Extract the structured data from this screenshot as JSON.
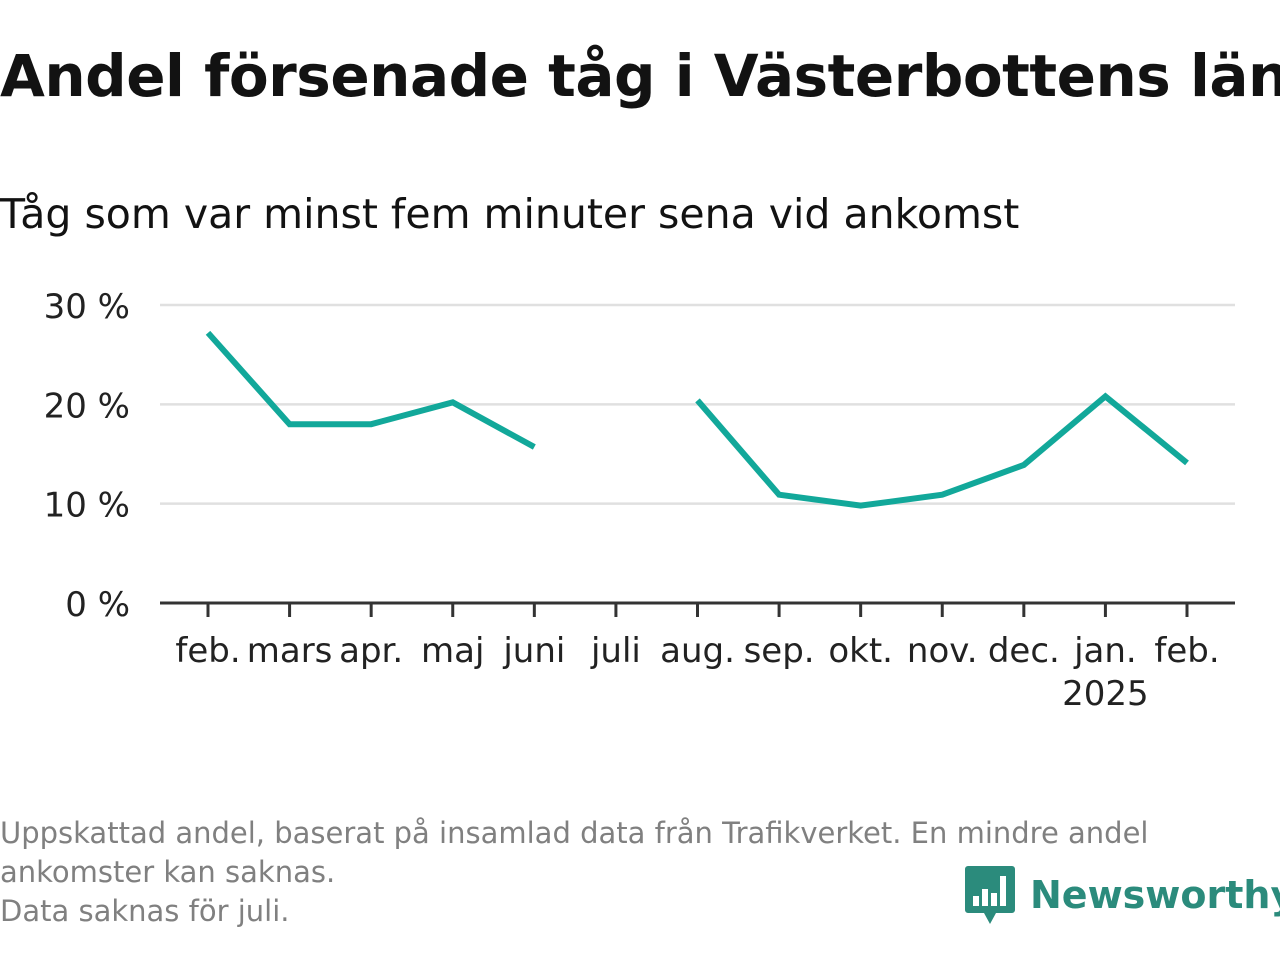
{
  "title": "Andel försenade tåg i Västerbottens län",
  "subtitle": "Tåg som var minst fem minuter sena vid ankomst",
  "footnote": {
    "line1": "Uppskattad andel, baserat på insamlad data från Trafikverket. En mindre andel",
    "line2": "ankomster kan saknas.",
    "line3": "Data saknas för juli."
  },
  "brand": {
    "name": "Newsworthy",
    "icon": "newsworthy-logo-icon",
    "color": "#2b8b7c"
  },
  "colors": {
    "line": "#12a89a",
    "grid": "#e0e0e0",
    "axis": "#333333"
  },
  "chart_data": {
    "type": "line",
    "title": "Andel försenade tåg i Västerbottens län",
    "subtitle": "Tåg som var minst fem minuter sena vid ankomst",
    "categories": [
      "feb.",
      "mars",
      "apr.",
      "maj",
      "juni",
      "juli",
      "aug.",
      "sep.",
      "okt.",
      "nov.",
      "dec.",
      "jan.",
      "feb."
    ],
    "category_sublabels": [
      "",
      "",
      "",
      "",
      "",
      "",
      "",
      "",
      "",
      "",
      "",
      "2025",
      ""
    ],
    "values": [
      27.2,
      18,
      18,
      20.2,
      15.7,
      null,
      20.4,
      10.9,
      9.8,
      10.9,
      13.9,
      20.8,
      14.1
    ],
    "ylim": [
      0,
      30
    ],
    "yticks": [
      0,
      10,
      20,
      30
    ],
    "ytick_labels": [
      "0 %",
      "10 %",
      "20 %",
      "30 %"
    ],
    "xlabel": "",
    "ylabel": "",
    "grid": true,
    "legend": "none"
  }
}
